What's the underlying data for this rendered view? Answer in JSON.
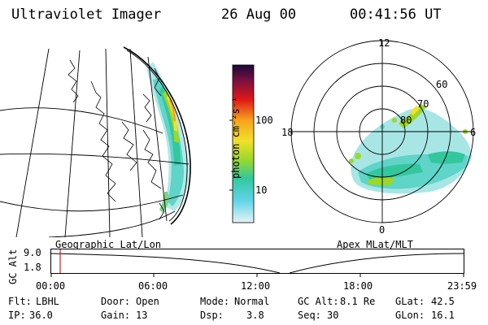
{
  "header": {
    "instrument": "Ultraviolet Imager",
    "date": "26 Aug 00",
    "time": "00:41:56 UT"
  },
  "colorbar": {
    "label": "photon cm⁻²s⁻¹",
    "ticks": [
      "100",
      "10"
    ]
  },
  "polar_plot": {
    "mlt_labels": [
      "12",
      "18",
      "6",
      "0"
    ],
    "lat_labels": [
      "60",
      "70",
      "80"
    ]
  },
  "panel_titles": {
    "left": "Geographic Lat/Lon",
    "right": "Apex MLat/MLT"
  },
  "timeline": {
    "ylabel": "GC Alt",
    "y_ticks": [
      "9.0",
      "1.8"
    ],
    "x_ticks": [
      "00:00",
      "06:00",
      "12:00",
      "18:00",
      "23:59"
    ]
  },
  "footer": {
    "flt_label": "Flt:",
    "flt_value": "LBHL",
    "ip_label": "IP:",
    "ip_value": "36.0",
    "door_label": "Door:",
    "door_value": "Open",
    "gain_label": "Gain:",
    "gain_value": "13",
    "mode_label": "Mode:",
    "mode_value": "Normal",
    "dsp_label": "Dsp:",
    "dsp_value": "3.8",
    "gcalt_label": "GC Alt:",
    "gcalt_value": "8.1 Re",
    "seq_label": "Seq:",
    "seq_value": "30",
    "glat_label": "GLat:",
    "glat_value": "42.5",
    "glon_label": "GLon:",
    "glon_value": "16.1"
  }
}
